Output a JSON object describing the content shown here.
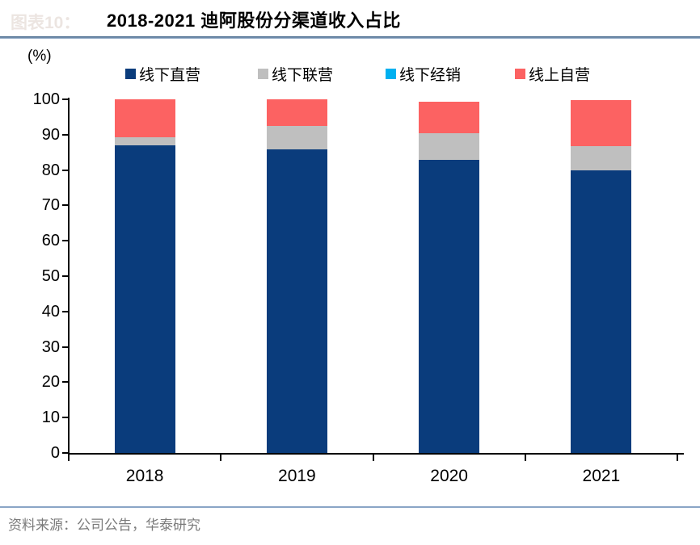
{
  "ghost_figure_label": "图表10：",
  "header": {
    "title": "2018-2021 迪阿股份分渠道收入占比"
  },
  "axis_unit": "(%)",
  "legend": [
    {
      "label": "线下直营",
      "color": "#0a3c7c"
    },
    {
      "label": "线下联营",
      "color": "#bfbfbf"
    },
    {
      "label": "线下经销",
      "color": "#00b0f0"
    },
    {
      "label": "线上自营",
      "color": "#fc6262"
    }
  ],
  "chart_data": {
    "type": "bar",
    "stacked": true,
    "title": "2018-2021 迪阿股份分渠道收入占比",
    "ylabel": "(%)",
    "xlabel": "",
    "ylim": [
      0,
      100
    ],
    "yticks": [
      0,
      10,
      20,
      30,
      40,
      50,
      60,
      70,
      80,
      90,
      100
    ],
    "grid": false,
    "legend_position": "top",
    "categories": [
      "2018",
      "2019",
      "2020",
      "2021"
    ],
    "series": [
      {
        "name": "线下直营",
        "color": "#0a3c7c",
        "values": [
          87.0,
          85.9,
          82.8,
          80.0
        ]
      },
      {
        "name": "线下联营",
        "color": "#bfbfbf",
        "values": [
          2.2,
          6.6,
          7.7,
          6.7
        ]
      },
      {
        "name": "线下经销",
        "color": "#00b0f0",
        "values": [
          0.0,
          0.0,
          0.0,
          0.0
        ]
      },
      {
        "name": "线上自营",
        "color": "#fc6262",
        "values": [
          10.8,
          7.5,
          8.9,
          13.0
        ]
      }
    ]
  },
  "footer": {
    "source": "资料来源：公司公告，华泰研究"
  }
}
